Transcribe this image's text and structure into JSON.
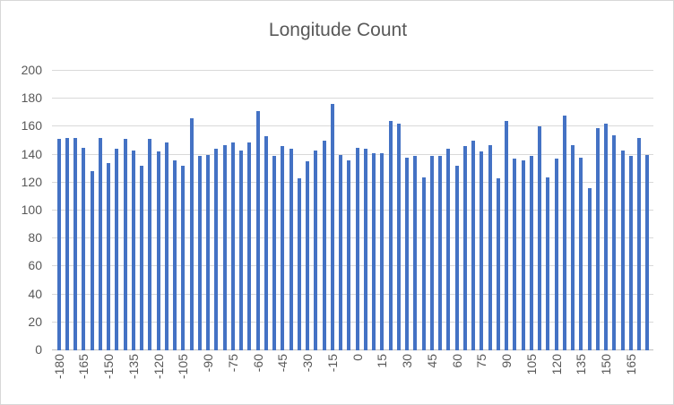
{
  "chart_data": {
    "type": "bar",
    "title": "Longitude Count",
    "xlabel": "",
    "ylabel": "",
    "ylim": [
      0,
      200
    ],
    "yticks": [
      0,
      20,
      40,
      60,
      80,
      100,
      120,
      140,
      160,
      180,
      200
    ],
    "x_tick_labels": [
      -180,
      -165,
      -150,
      -135,
      -120,
      -105,
      -90,
      -75,
      -60,
      -45,
      -30,
      -15,
      0,
      15,
      30,
      45,
      60,
      75,
      90,
      105,
      120,
      135,
      150,
      165
    ],
    "x_label_every_n_bars": 3,
    "grid": true,
    "legend": "none",
    "categories": [
      -180,
      -175,
      -170,
      -165,
      -160,
      -155,
      -150,
      -145,
      -140,
      -135,
      -130,
      -125,
      -120,
      -115,
      -110,
      -105,
      -100,
      -95,
      -90,
      -85,
      -80,
      -75,
      -70,
      -65,
      -60,
      -55,
      -50,
      -45,
      -40,
      -35,
      -30,
      -25,
      -20,
      -15,
      -10,
      -5,
      0,
      5,
      10,
      15,
      20,
      25,
      30,
      35,
      40,
      45,
      50,
      55,
      60,
      65,
      70,
      75,
      80,
      85,
      90,
      95,
      100,
      105,
      110,
      115,
      120,
      125,
      130,
      135,
      140,
      145,
      150,
      155,
      160,
      165,
      170,
      175
    ],
    "values": [
      151,
      152,
      152,
      145,
      128,
      152,
      134,
      144,
      151,
      143,
      132,
      151,
      142,
      149,
      136,
      132,
      166,
      139,
      140,
      144,
      147,
      149,
      143,
      149,
      171,
      153,
      139,
      146,
      144,
      123,
      135,
      143,
      150,
      176,
      140,
      136,
      145,
      144,
      141,
      141,
      164,
      162,
      138,
      139,
      124,
      139,
      139,
      144,
      132,
      146,
      150,
      142,
      147,
      123,
      164,
      137,
      136,
      139,
      160,
      124,
      137,
      168,
      147,
      138,
      116,
      159,
      162,
      154,
      143,
      139,
      152,
      140
    ],
    "colors": {
      "bar": "#4472c4",
      "gridline": "#d9d9d9",
      "axis_line": "#bfbfbf",
      "text": "#595959",
      "chart_border": "#d7d7d7",
      "background": "#ffffff"
    }
  }
}
